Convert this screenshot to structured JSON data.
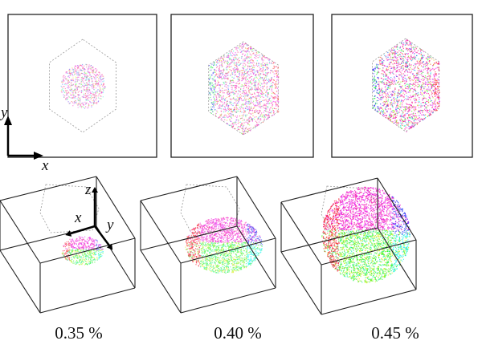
{
  "panels": [
    {
      "caption": "0.35 %",
      "fill_level": 0.35
    },
    {
      "caption": "0.40 %",
      "fill_level": 0.4
    },
    {
      "caption": "0.45 %",
      "fill_level": 0.45
    }
  ],
  "axes_2d": {
    "x_label": "x",
    "y_label": "y"
  },
  "axes_3d": {
    "x_label": "x",
    "y_label": "y",
    "z_label": "z"
  },
  "colors": {
    "frame": "#222222",
    "outline": "#999999"
  }
}
